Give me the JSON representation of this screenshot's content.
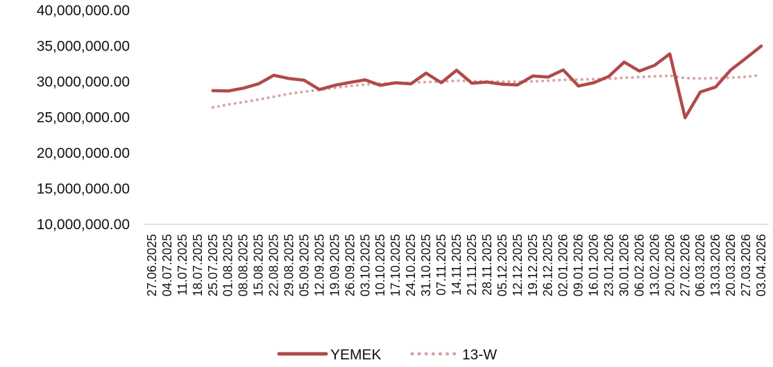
{
  "chart_data": {
    "type": "line",
    "title": "",
    "xlabel": "",
    "ylabel": "",
    "ylim": [
      10000000,
      40000000
    ],
    "yticks": [
      "10,000,000.00",
      "15,000,000.00",
      "20,000,000.00",
      "25,000,000.00",
      "30,000,000.00",
      "35,000,000.00",
      "40,000,000.00"
    ],
    "grid": false,
    "legend": "bottom",
    "categories": [
      "27.06.2025",
      "04.07.2025",
      "11.07.2025",
      "18.07.2025",
      "25.07.2025",
      "01.08.2025",
      "08.08.2025",
      "15.08.2025",
      "22.08.2025",
      "29.08.2025",
      "05.09.2025",
      "12.09.2025",
      "19.09.2025",
      "26.09.2025",
      "03.10.2025",
      "10.10.2025",
      "17.10.2025",
      "24.10.2025",
      "31.10.2025",
      "07.11.2025",
      "14.11.2025",
      "21.11.2025",
      "28.11.2025",
      "05.12.2025",
      "12.12.2025",
      "19.12.2025",
      "26.12.2025",
      "02.01.2026",
      "09.01.2026",
      "16.01.2026",
      "23.01.2026",
      "30.01.2026",
      "06.02.2026",
      "13.02.2026",
      "20.02.2026",
      "27.02.2026",
      "06.03.2026",
      "13.03.2026",
      "20.03.2026",
      "27.03.2026",
      "03.04.2026"
    ],
    "series": [
      {
        "name": "YEMEK",
        "color": "#b04a4a",
        "style": "solid",
        "values": [
          null,
          null,
          null,
          null,
          28750000,
          28700000,
          29100000,
          29700000,
          30900000,
          30450000,
          30200000,
          28900000,
          29500000,
          29900000,
          30250000,
          29500000,
          29850000,
          29700000,
          31200000,
          29850000,
          31600000,
          29800000,
          29950000,
          29650000,
          29550000,
          30800000,
          30650000,
          31650000,
          29400000,
          29850000,
          30750000,
          32750000,
          31500000,
          32300000,
          33900000,
          24950000,
          28550000,
          29250000,
          31650000,
          33300000,
          35000000
        ]
      },
      {
        "name": "13-W",
        "color": "#d9a3a3",
        "style": "dotted",
        "values": [
          null,
          null,
          null,
          null,
          26400000,
          26800000,
          27150000,
          27500000,
          27900000,
          28300000,
          28600000,
          28850000,
          29150000,
          29400000,
          29600000,
          29750000,
          29800000,
          29850000,
          29950000,
          30000000,
          30150000,
          30100000,
          30050000,
          30000000,
          30000000,
          30050000,
          30150000,
          30250000,
          30300000,
          30350000,
          30400000,
          30550000,
          30650000,
          30750000,
          30850000,
          30500000,
          30450000,
          30500000,
          30550000,
          30700000,
          30950000
        ]
      }
    ]
  }
}
